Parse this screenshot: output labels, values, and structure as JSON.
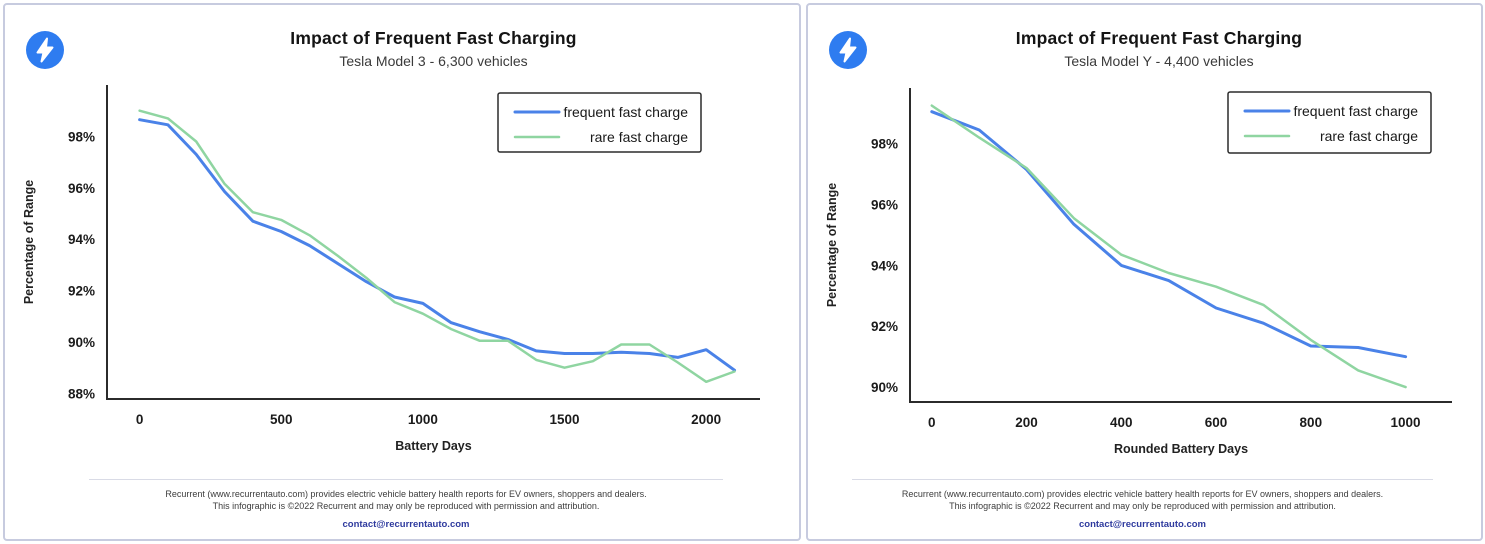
{
  "colors": {
    "frequent_line": "#4a82e8",
    "rare_line": "#8fd5a1",
    "axis": "#2b2b2b",
    "card_border": "#c7cbdf",
    "divider": "#d9dbe6",
    "title_text": "#141414",
    "subtitle_text": "#3a3a3a",
    "footer_text": "#3d3d3d",
    "email_link": "#2e3a9e",
    "logo_blue": "#2e7cf0",
    "logo_bolt": "#ffffff",
    "legend_border": "#2b2b2b"
  },
  "branding": {
    "logo_icon": "lightning-bolt-icon"
  },
  "footer": {
    "line1": "Recurrent (www.recurrentauto.com) provides electric vehicle battery health reports for EV owners, shoppers and dealers.",
    "line2": "This infographic is ©2022 Recurrent and may only be reproduced with permission and attribution.",
    "email": "contact@recurrentauto.com"
  },
  "chart_data": [
    {
      "type": "line",
      "title": "Impact of Frequent Fast Charging",
      "subtitle": "Tesla Model 3 - 6,300 vehicles",
      "xlabel": "Battery Days",
      "ylabel": "Percentage of Range",
      "legend_position": "upper right",
      "grid": false,
      "x": [
        0,
        100,
        200,
        300,
        400,
        500,
        600,
        700,
        800,
        900,
        1000,
        1100,
        1200,
        1300,
        1400,
        1500,
        1600,
        1700,
        1800,
        1900,
        2000,
        2100
      ],
      "series": [
        {
          "name": "frequent fast charge",
          "color": "#4a82e8",
          "values": [
            98.65,
            98.45,
            97.3,
            95.85,
            94.7,
            94.3,
            93.75,
            93.05,
            92.35,
            91.75,
            91.5,
            90.75,
            90.4,
            90.1,
            89.65,
            89.55,
            89.55,
            89.6,
            89.55,
            89.4,
            89.7,
            88.9
          ]
        },
        {
          "name": "rare fast charge",
          "color": "#8fd5a1",
          "values": [
            99.0,
            98.7,
            97.8,
            96.15,
            95.05,
            94.75,
            94.15,
            93.35,
            92.5,
            91.55,
            91.1,
            90.5,
            90.05,
            90.05,
            89.3,
            89.0,
            89.25,
            89.9,
            89.9,
            89.2,
            88.45,
            88.85
          ]
        }
      ],
      "xticks": [
        0,
        500,
        1000,
        1500,
        2000
      ],
      "yticks": [
        88,
        90,
        92,
        94,
        96,
        98
      ],
      "xlim": [
        -115,
        2190
      ],
      "ylim": [
        87.78,
        100.0
      ]
    },
    {
      "type": "line",
      "title": "Impact of Frequent Fast Charging",
      "subtitle": "Tesla Model Y - 4,400 vehicles",
      "xlabel": "Rounded Battery Days",
      "ylabel": "Percentage of Range",
      "legend_position": "upper right",
      "grid": false,
      "x": [
        0,
        100,
        200,
        300,
        400,
        500,
        600,
        700,
        800,
        900,
        1000
      ],
      "series": [
        {
          "name": "frequent fast charge",
          "color": "#4a82e8",
          "values": [
            99.05,
            98.45,
            97.15,
            95.35,
            94.0,
            93.5,
            92.6,
            92.1,
            91.35,
            91.3,
            91.0
          ]
        },
        {
          "name": "rare fast charge",
          "color": "#8fd5a1",
          "values": [
            99.25,
            98.2,
            97.2,
            95.55,
            94.35,
            93.75,
            93.3,
            92.7,
            91.55,
            90.55,
            90.0
          ]
        }
      ],
      "xticks": [
        0,
        200,
        400,
        600,
        800,
        1000
      ],
      "yticks": [
        90,
        92,
        94,
        96,
        98
      ],
      "xlim": [
        -46,
        1098
      ],
      "ylim": [
        89.51,
        99.83
      ]
    }
  ]
}
